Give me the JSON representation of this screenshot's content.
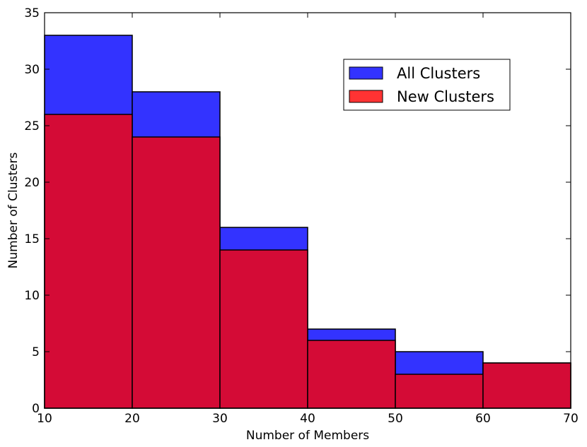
{
  "chart_data": {
    "type": "bar",
    "xlabel": "Number of Members",
    "ylabel": "Number of Clusters",
    "xlim": [
      10,
      70
    ],
    "ylim": [
      0,
      35
    ],
    "x_ticks": [
      "10",
      "20",
      "30",
      "40",
      "50",
      "60",
      "70"
    ],
    "y_ticks": [
      "0",
      "5",
      "10",
      "15",
      "20",
      "25",
      "30",
      "35"
    ],
    "bins": [
      [
        10,
        20
      ],
      [
        20,
        30
      ],
      [
        30,
        40
      ],
      [
        40,
        50
      ],
      [
        50,
        60
      ],
      [
        60,
        70
      ]
    ],
    "grid": false,
    "legend_position": "upper-right",
    "series": [
      {
        "name": "All Clusters",
        "values": [
          33,
          28,
          16,
          7,
          5,
          4
        ],
        "color": "#3333ff"
      },
      {
        "name": "New Clusters",
        "values": [
          26,
          24,
          14,
          6,
          3,
          4
        ],
        "color": "#ff3333"
      }
    ],
    "overlap_color": "#d40b36"
  }
}
